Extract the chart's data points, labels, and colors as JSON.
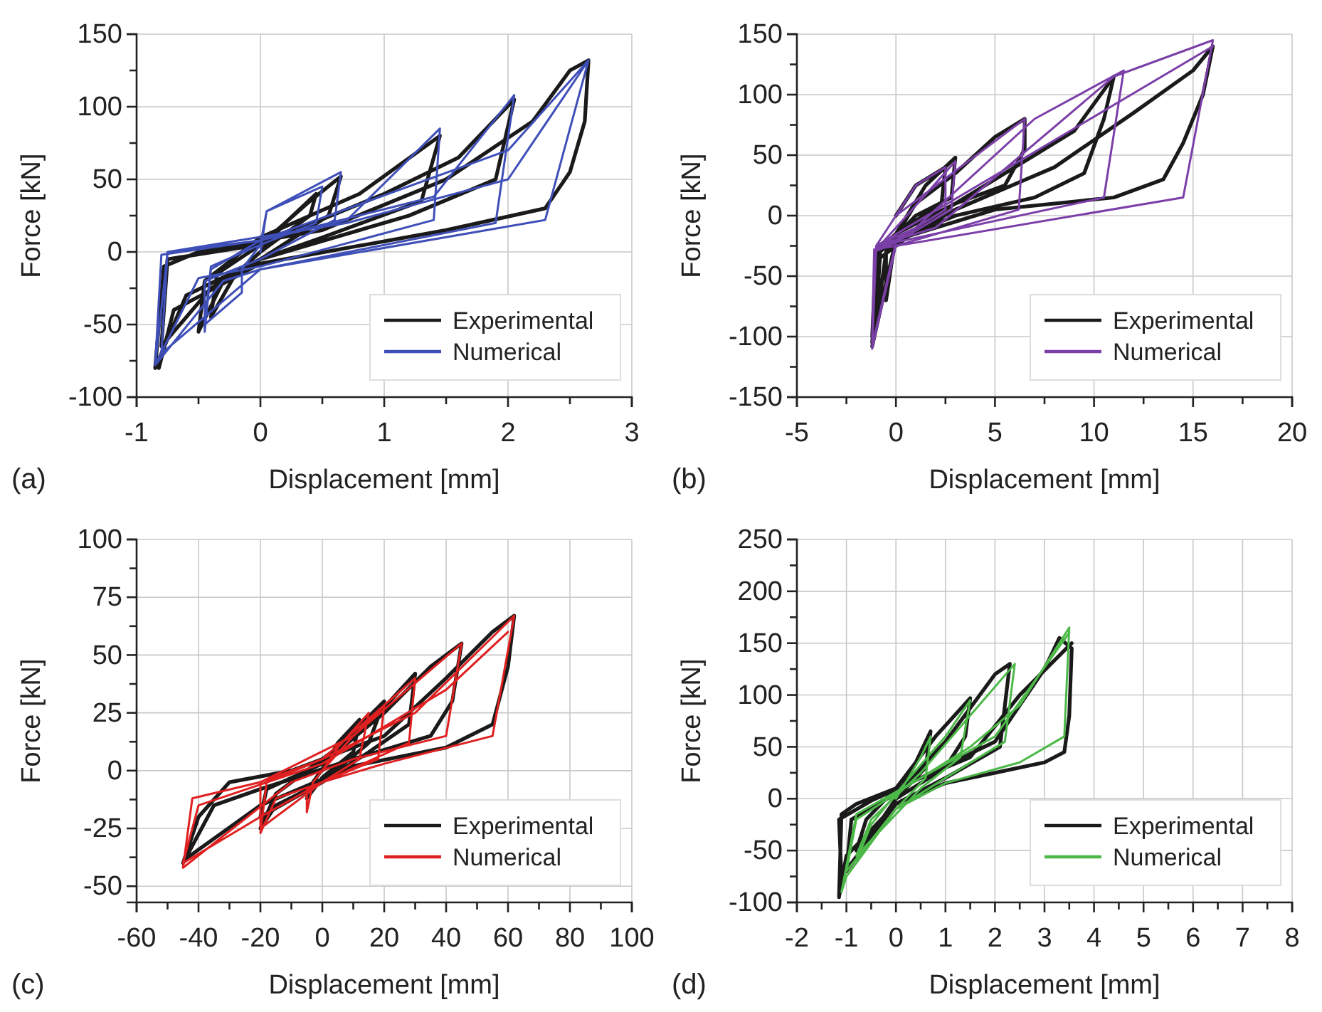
{
  "chart_data": [
    {
      "type": "line",
      "xlabel": "Displacement [mm]",
      "ylabel": "Force [kN]",
      "annotations": [
        "(a)"
      ],
      "grid": true,
      "legend": "bottom right",
      "line_style": "solid",
      "marker": "none",
      "xlim": [
        -1,
        3
      ],
      "xticks": [
        -1,
        {
          "value": -0.5,
          "label": null
        },
        0,
        {
          "value": 0.5,
          "label": null
        },
        1,
        {
          "value": 1.5,
          "label": null
        },
        2,
        {
          "value": 2.5,
          "label": null
        },
        3
      ],
      "ylim": [
        -100,
        150
      ],
      "yticks": [
        -100,
        {
          "value": -75,
          "label": null
        },
        -50,
        {
          "value": -25,
          "label": null
        },
        0,
        {
          "value": 25,
          "label": null
        },
        50,
        {
          "value": 75,
          "label": null
        },
        100,
        {
          "value": 125,
          "label": null
        },
        150
      ],
      "series": [
        {
          "name": "Experimental",
          "color": "#1a1a1a",
          "x": [
            0,
            0.2,
            0.45,
            0.4,
            0,
            -0.2,
            -0.4,
            -0.35,
            0,
            0.4,
            0.65,
            0.55,
            0,
            -0.3,
            -0.5,
            -0.45,
            0,
            0.8,
            1.45,
            1.3,
            0.5,
            0,
            -0.4,
            -0.8,
            -0.75,
            0,
            1.0,
            1.6,
            2.05,
            1.9,
            1.2,
            0,
            -0.6,
            -0.85,
            -0.78,
            -0.5,
            0.5,
            1.5,
            2.2,
            2.5,
            2.65,
            2.62,
            2.5,
            2.3,
            1.5,
            0,
            -0.7,
            -0.82
          ],
          "values": [
            0,
            20,
            40,
            25,
            0,
            -15,
            -45,
            -15,
            5,
            35,
            52,
            25,
            -5,
            -20,
            -55,
            -20,
            10,
            40,
            80,
            35,
            10,
            -5,
            -25,
            -65,
            -5,
            5,
            40,
            65,
            105,
            50,
            25,
            -5,
            -30,
            -80,
            -10,
            0,
            15,
            50,
            90,
            125,
            132,
            90,
            55,
            30,
            15,
            -8,
            -40,
            -80
          ]
        },
        {
          "name": "Numerical",
          "color": "#3f4fb8",
          "x": [
            0,
            0.05,
            0.5,
            0.45,
            0,
            -0.15,
            -0.15,
            -0.45,
            -0.4,
            0,
            0.05,
            0.65,
            0.6,
            0,
            -0.45,
            -0.45,
            -0.4,
            0,
            0.7,
            1.45,
            1.4,
            0,
            -0.5,
            -0.85,
            -0.75,
            0,
            1.4,
            2.05,
            1.9,
            0,
            -0.8,
            -0.75,
            0.7,
            2.0,
            2.65,
            2.3,
            0,
            -0.3,
            -0.85,
            -0.8,
            0,
            2.0,
            2.65
          ],
          "values": [
            0,
            28,
            45,
            20,
            5,
            -12,
            -28,
            -50,
            -10,
            5,
            28,
            55,
            22,
            -5,
            -20,
            -55,
            -12,
            8,
            22,
            85,
            22,
            -10,
            -18,
            -78,
            0,
            8,
            38,
            108,
            20,
            -12,
            -70,
            0,
            20,
            50,
            132,
            22,
            -12,
            -20,
            -78,
            -2,
            8,
            70,
            132
          ]
        }
      ]
    },
    {
      "type": "line",
      "xlabel": "Displacement [mm]",
      "ylabel": "Force [kN]",
      "annotations": [
        "(b)"
      ],
      "grid": true,
      "legend": "bottom right",
      "line_style": "solid",
      "marker": "none",
      "xlim": [
        -5,
        20
      ],
      "xticks": [
        -5,
        {
          "value": -2.5,
          "label": null
        },
        0,
        {
          "value": 2.5,
          "label": null
        },
        5,
        {
          "value": 7.5,
          "label": null
        },
        10,
        {
          "value": 12.5,
          "label": null
        },
        15,
        {
          "value": 17.5,
          "label": null
        },
        20
      ],
      "ylim": [
        -150,
        150
      ],
      "yticks": [
        -150,
        {
          "value": -125,
          "label": null
        },
        -100,
        {
          "value": -75,
          "label": null
        },
        -50,
        {
          "value": -25,
          "label": null
        },
        0,
        {
          "value": 25,
          "label": null
        },
        50,
        {
          "value": 75,
          "label": null
        },
        100,
        {
          "value": 125,
          "label": null
        },
        150
      ],
      "series": [
        {
          "name": "Experimental",
          "color": "#1a1a1a",
          "x": [
            0,
            1,
            2.5,
            2.3,
            0,
            -0.5,
            -0.5,
            0,
            1.5,
            3,
            2.8,
            1,
            -0.8,
            -1,
            -0.5,
            1,
            3,
            5,
            6.5,
            6.5,
            5.5,
            3,
            0,
            -1,
            -1.2,
            -0.8,
            2,
            6,
            9,
            11,
            10.5,
            9.5,
            7,
            3,
            0,
            -1.2,
            -0.9,
            3,
            8,
            12,
            15,
            16,
            15.5,
            14.5,
            13.5,
            11,
            5,
            0,
            -1.2
          ],
          "values": [
            0,
            25,
            40,
            10,
            -15,
            -30,
            -70,
            -15,
            25,
            48,
            15,
            0,
            -30,
            -90,
            -30,
            10,
            35,
            65,
            80,
            55,
            25,
            10,
            -15,
            -30,
            -100,
            -35,
            0,
            40,
            70,
            115,
            80,
            35,
            15,
            0,
            -20,
            -105,
            -30,
            5,
            40,
            85,
            120,
            140,
            100,
            60,
            30,
            15,
            5,
            -20,
            -108
          ]
        },
        {
          "name": "Numerical",
          "color": "#7b3fa8",
          "x": [
            0,
            1,
            2.5,
            2.5,
            0,
            -1,
            -1.2,
            -1,
            0,
            3,
            2.8,
            0,
            -1.1,
            -1.2,
            -1,
            0,
            6.5,
            6.2,
            0,
            -1.1,
            -1.2,
            -1,
            1,
            7,
            11.5,
            10.5,
            0,
            -1.2,
            -1,
            2,
            11,
            16,
            14.5,
            0,
            -1.2,
            -1,
            16
          ],
          "values": [
            0,
            25,
            40,
            5,
            -20,
            -28,
            -105,
            -28,
            -10,
            45,
            5,
            -22,
            -30,
            -110,
            -25,
            0,
            80,
            5,
            -25,
            -28,
            -100,
            -25,
            -10,
            80,
            120,
            15,
            -22,
            -108,
            -25,
            -10,
            115,
            145,
            15,
            -25,
            -110,
            -25,
            140
          ]
        }
      ]
    },
    {
      "type": "line",
      "xlabel": "Displacement [mm]",
      "ylabel": "Force [kN]",
      "annotations": [
        "(c)"
      ],
      "grid": true,
      "legend": "bottom right",
      "line_style": "solid",
      "marker": "none",
      "xlim": [
        -60,
        100
      ],
      "xticks": [
        -60,
        {
          "value": -50,
          "label": null
        },
        -40,
        {
          "value": -30,
          "label": null
        },
        -20,
        {
          "value": -10,
          "label": null
        },
        0,
        {
          "value": 10,
          "label": null
        },
        20,
        {
          "value": 30,
          "label": null
        },
        40,
        {
          "value": 50,
          "label": null
        },
        60,
        {
          "value": 70,
          "label": null
        },
        80,
        {
          "value": 90,
          "label": null
        },
        100
      ],
      "ylim": [
        -57,
        100
      ],
      "yticks": [
        -50,
        {
          "value": -37.5,
          "label": null
        },
        -25,
        {
          "value": -12.5,
          "label": null
        },
        0,
        {
          "value": 12.5,
          "label": null
        },
        25,
        {
          "value": 37.5,
          "label": null
        },
        50,
        {
          "value": 62.5,
          "label": null
        },
        75,
        {
          "value": 87.5,
          "label": null
        },
        100
      ],
      "series": [
        {
          "name": "Experimental",
          "color": "#1a1a1a",
          "x": [
            0,
            5,
            12,
            10,
            0,
            -5,
            -3,
            5,
            20,
            15,
            0,
            -15,
            -20,
            -15,
            0,
            15,
            30,
            28,
            15,
            0,
            -20,
            -18,
            0,
            20,
            35,
            45,
            42,
            35,
            10,
            -20,
            -35,
            -45,
            -40,
            -30,
            -10,
            20,
            40,
            55,
            62,
            60,
            55,
            40,
            10,
            -20,
            -44
          ],
          "values": [
            0,
            12,
            22,
            8,
            -3,
            -12,
            -5,
            10,
            30,
            12,
            -5,
            -15,
            -25,
            -10,
            5,
            20,
            42,
            20,
            8,
            -5,
            -20,
            -8,
            3,
            25,
            45,
            55,
            30,
            15,
            5,
            -8,
            -15,
            -40,
            -20,
            -5,
            0,
            15,
            40,
            60,
            67,
            45,
            20,
            10,
            2,
            -15,
            -38
          ]
        },
        {
          "name": "Numerical",
          "color": "#e02020",
          "x": [
            0,
            5,
            15,
            12,
            0,
            -5,
            -5,
            -3,
            0,
            10,
            20,
            18,
            0,
            -15,
            -20,
            -18,
            0,
            30,
            28,
            0,
            -20,
            -20,
            10,
            45,
            40,
            10,
            -10,
            -45,
            -42,
            -20,
            0,
            30,
            62,
            55,
            20,
            0,
            -20,
            -45,
            -40,
            0,
            40,
            60
          ],
          "values": [
            0,
            10,
            25,
            5,
            -5,
            -8,
            -18,
            -5,
            0,
            15,
            28,
            5,
            -5,
            -12,
            -27,
            -5,
            5,
            40,
            12,
            -5,
            -25,
            -5,
            15,
            55,
            15,
            5,
            -5,
            -42,
            -12,
            -5,
            5,
            25,
            67,
            15,
            3,
            -5,
            -20,
            -40,
            -15,
            3,
            35,
            60
          ]
        }
      ]
    },
    {
      "type": "line",
      "xlabel": "Displacement [mm]",
      "ylabel": "Force [kN]",
      "annotations": [
        "(d)"
      ],
      "grid": true,
      "legend": "bottom right",
      "line_style": "solid",
      "marker": "none",
      "xlim": [
        -2,
        8
      ],
      "xticks": [
        -2,
        {
          "value": -1.5,
          "label": null
        },
        -1,
        {
          "value": -0.5,
          "label": null
        },
        0,
        {
          "value": 0.5,
          "label": null
        },
        1,
        {
          "value": 1.5,
          "label": null
        },
        2,
        {
          "value": 2.5,
          "label": null
        },
        3,
        {
          "value": 3.5,
          "label": null
        },
        4,
        {
          "value": 4.5,
          "label": null
        },
        5,
        {
          "value": 5.5,
          "label": null
        },
        6,
        {
          "value": 6.5,
          "label": null
        },
        7,
        {
          "value": 7.5,
          "label": null
        },
        8
      ],
      "ylim": [
        -100,
        250
      ],
      "yticks": [
        -100,
        {
          "value": -75,
          "label": null
        },
        -50,
        {
          "value": -25,
          "label": null
        },
        0,
        {
          "value": 25,
          "label": null
        },
        50,
        {
          "value": 75,
          "label": null
        },
        100,
        {
          "value": 125,
          "label": null
        },
        150,
        {
          "value": 175,
          "label": null
        },
        200,
        {
          "value": 225,
          "label": null
        },
        250
      ],
      "series": [
        {
          "name": "Experimental",
          "color": "#1a1a1a",
          "x": [
            0,
            0.4,
            0.7,
            0.6,
            0,
            -0.5,
            -0.8,
            -0.6,
            0,
            0.8,
            1.5,
            1.4,
            1,
            0,
            -0.7,
            -1,
            -0.9,
            0,
            1,
            2,
            2.3,
            2.2,
            2.1,
            1,
            0,
            -1.1,
            -1.15,
            -0.5,
            0.5,
            2,
            3,
            3.3,
            3.55,
            3.5,
            3.4,
            3,
            2,
            1,
            0,
            -1,
            -1.15,
            -1.1,
            -0.8,
            0,
            1.5,
            2.5,
            3.55
          ],
          "values": [
            0,
            35,
            65,
            30,
            0,
            -35,
            -50,
            -20,
            10,
            60,
            97,
            60,
            30,
            0,
            -50,
            -70,
            -20,
            5,
            55,
            120,
            130,
            90,
            50,
            20,
            -5,
            -75,
            -20,
            -2,
            20,
            55,
            125,
            155,
            145,
            80,
            45,
            35,
            25,
            15,
            -5,
            -55,
            -95,
            -15,
            -5,
            10,
            40,
            100,
            150
          ]
        },
        {
          "name": "Numerical",
          "color": "#4cb848",
          "x": [
            0,
            0.5,
            0.7,
            0.6,
            0,
            -0.5,
            -0.8,
            -0.5,
            0,
            1,
            1.5,
            1.3,
            0.5,
            0,
            -0.8,
            -0.5,
            0.5,
            2.4,
            2.2,
            1,
            0,
            -1,
            -0.8,
            0,
            1.5,
            2.5,
            3.5,
            3.4,
            2.5,
            1,
            0,
            -1,
            -1.1,
            -0.8,
            0.5,
            2,
            3.5
          ],
          "values": [
            0,
            40,
            60,
            20,
            -10,
            -40,
            -60,
            -25,
            5,
            60,
            95,
            40,
            10,
            -15,
            -55,
            -20,
            25,
            130,
            55,
            20,
            -10,
            -70,
            -20,
            5,
            50,
            90,
            165,
            60,
            35,
            15,
            -10,
            -75,
            -90,
            -15,
            20,
            60,
            160
          ]
        }
      ]
    }
  ]
}
